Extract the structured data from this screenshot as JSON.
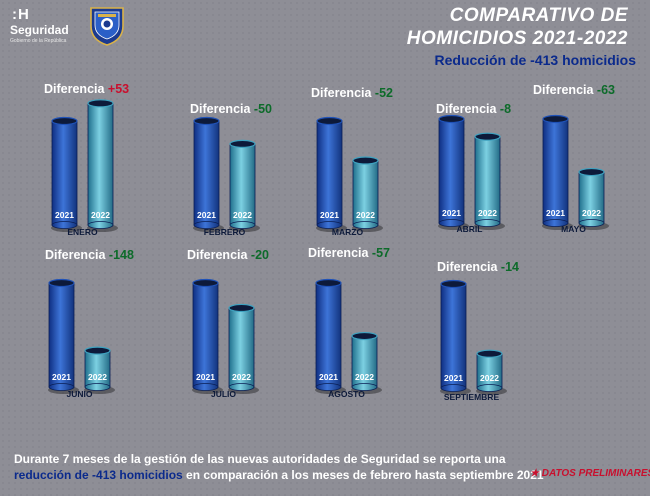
{
  "header": {
    "logo_mark": ":H",
    "logo_name": "Seguridad",
    "logo_sub": "Gobierno de la República",
    "title_line1": "COMPARATIVO DE",
    "title_line2": "HOMICIDIOS 2021-2022",
    "subtitle": "Reducción de -413 homicidios"
  },
  "footer": {
    "line1": "Durante 7 meses de la gestión de las nuevas autoridades de Seguridad se reporta una",
    "line2_blue": "reducción de -413 homicidios",
    "line2_rest": " en comparación a los meses de febrero hasta septiembre 2021",
    "prelim": "DATOS PRELIMINARES"
  },
  "colors": {
    "background": "#8e8e96",
    "bar_2021": "#1f52b8",
    "bar_2022": "#3ea2c0",
    "positive": "#c8102e",
    "negative": "#0d6b2a",
    "title": "#ffffff",
    "subtitle": "#0b2a8c"
  },
  "chart_data": {
    "type": "bar",
    "title": "COMPARATIVO DE HOMICIDIOS 2021-2022",
    "series_labels": [
      "2021",
      "2022"
    ],
    "diff_label": "Diferencia",
    "panels": [
      {
        "month": "ENERO",
        "v2021": 100,
        "v2022": 117,
        "diff": "+53",
        "sign": "pos"
      },
      {
        "month": "FEBRERO",
        "v2021": 100,
        "v2022": 78,
        "diff": "-50",
        "sign": "neg"
      },
      {
        "month": "MARZO",
        "v2021": 100,
        "v2022": 62,
        "diff": "-52",
        "sign": "neg"
      },
      {
        "month": "ABRIL",
        "v2021": 100,
        "v2022": 83,
        "diff": "-8",
        "sign": "neg"
      },
      {
        "month": "MAYO",
        "v2021": 100,
        "v2022": 49,
        "diff": "-63",
        "sign": "neg"
      },
      {
        "month": "JUNIO",
        "v2021": 100,
        "v2022": 35,
        "diff": "-148",
        "sign": "neg"
      },
      {
        "month": "JULIO",
        "v2021": 100,
        "v2022": 76,
        "diff": "-20",
        "sign": "neg"
      },
      {
        "month": "AGOSTO",
        "v2021": 100,
        "v2022": 49,
        "diff": "-57",
        "sign": "neg"
      },
      {
        "month": "SEPTIEMBRE",
        "v2021": 100,
        "v2022": 33,
        "diff": "-14",
        "sign": "neg"
      }
    ]
  }
}
